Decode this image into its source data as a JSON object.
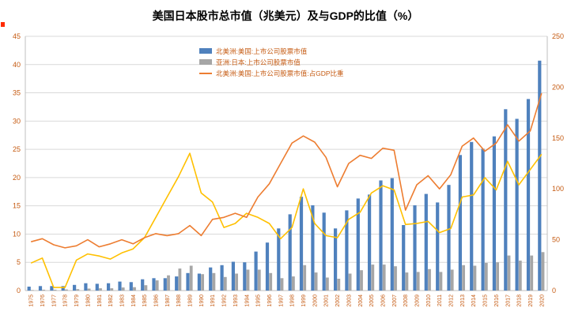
{
  "chart_data": {
    "type": "bar+line",
    "title": "美国日本股市总市值（兆美元）及与GDP的比值（%）",
    "categories": [
      "1975",
      "1976",
      "1977",
      "1978",
      "1979",
      "1980",
      "1981",
      "1982",
      "1983",
      "1984",
      "1985",
      "1986",
      "1987",
      "1988",
      "1989",
      "1990",
      "1991",
      "1992",
      "1993",
      "1994",
      "1995",
      "1996",
      "1997",
      "1998",
      "1999",
      "2000",
      "2001",
      "2002",
      "2003",
      "2004",
      "2005",
      "2006",
      "2007",
      "2008",
      "2009",
      "2010",
      "2011",
      "2012",
      "2013",
      "2014",
      "2015",
      "2016",
      "2017",
      "2018",
      "2019",
      "2020"
    ],
    "left_axis": {
      "min": 0,
      "max": 45,
      "ticks": [
        "0",
        "5",
        "10",
        "15",
        "20",
        "25",
        "30",
        "35",
        "40",
        "45"
      ]
    },
    "right_axis": {
      "min": 0,
      "max": 250,
      "ticks": [
        "0",
        "50",
        "100",
        "150",
        "200",
        "250"
      ]
    },
    "grid": "horizontal",
    "legend_position": "top-center",
    "colors": {
      "us_bar": "#4F81BD",
      "jp_bar": "#A6A6A6",
      "us_gdp_line": "#ED7D31",
      "jp_gdp_line": "#FFC000",
      "tick_text": "#C55A11",
      "grid_line": "#D9D9D9",
      "axis_line": "#BFBFBF"
    },
    "series": [
      {
        "name": "北美洲:美国:上市公司股票市值",
        "kind": "bar",
        "axis": "left",
        "in_legend": true,
        "values": [
          0.7,
          0.8,
          0.8,
          0.8,
          1.0,
          1.3,
          1.2,
          1.3,
          1.6,
          1.5,
          2.0,
          2.2,
          2.2,
          2.5,
          3.1,
          3.0,
          4.1,
          4.5,
          5.1,
          5.0,
          6.9,
          8.5,
          11.0,
          13.5,
          16.6,
          15.1,
          13.8,
          11.0,
          14.2,
          16.3,
          17.0,
          19.5,
          19.9,
          11.6,
          15.1,
          17.1,
          15.6,
          18.7,
          24.0,
          26.3,
          25.1,
          27.3,
          32.1,
          30.4,
          33.9,
          40.7
        ]
      },
      {
        "name": "亚洲:日本:上市公司股票市值",
        "kind": "bar",
        "axis": "left",
        "in_legend": true,
        "values": [
          0.1,
          0.15,
          0.15,
          0.2,
          0.25,
          0.35,
          0.4,
          0.4,
          0.55,
          0.6,
          0.95,
          1.8,
          2.7,
          3.9,
          4.4,
          2.9,
          3.1,
          2.4,
          3.0,
          3.7,
          3.7,
          3.1,
          2.2,
          2.5,
          4.5,
          3.2,
          2.3,
          2.1,
          3.0,
          3.6,
          4.6,
          4.6,
          4.3,
          3.2,
          3.3,
          3.8,
          3.3,
          3.7,
          4.5,
          4.4,
          4.9,
          5.0,
          6.2,
          5.3,
          6.2,
          6.8
        ]
      },
      {
        "name": "北美洲:美国:上市公司股票市值:占GDP比重",
        "kind": "line",
        "axis": "right",
        "in_legend": true,
        "values": [
          48,
          51,
          45,
          42,
          44,
          50,
          43,
          46,
          50,
          46,
          52,
          56,
          54,
          56,
          64,
          54,
          70,
          72,
          76,
          72,
          92,
          105,
          125,
          145,
          152,
          146,
          131,
          102,
          125,
          133,
          130,
          140,
          138,
          79,
          104,
          113,
          100,
          114,
          142,
          150,
          137,
          145,
          163,
          147,
          157,
          194
        ]
      },
      {
        "name": "",
        "kind": "line",
        "axis": "right",
        "in_legend": false,
        "values": [
          27,
          32,
          3,
          3,
          30,
          36,
          34,
          31,
          37,
          41,
          52,
          72,
          92,
          112,
          135,
          96,
          87,
          62,
          66,
          76,
          72,
          66,
          51,
          62,
          100,
          66,
          54,
          52,
          70,
          77,
          96,
          103,
          99,
          65,
          66,
          68,
          57,
          61,
          92,
          94,
          111,
          99,
          127,
          104,
          119,
          134
        ]
      }
    ]
  }
}
